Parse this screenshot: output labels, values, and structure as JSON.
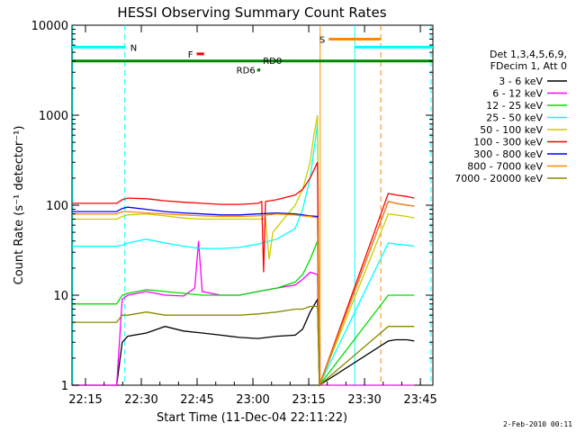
{
  "chart_data": {
    "type": "line",
    "title": "HESSI Observing Summary Count Rates",
    "xlabel": "Start Time (11-Dec-04 22:11:22)",
    "ylabel": "Count Rate (s⁻¹ detector⁻¹)",
    "y_scale": "log",
    "ylim": [
      1,
      10000
    ],
    "xlim_minutes": [
      0,
      97
    ],
    "x_ticks": [
      "22:15",
      "22:30",
      "22:45",
      "23:00",
      "23:15",
      "23:30",
      "23:45"
    ],
    "y_ticks": [
      "1",
      "10",
      "100",
      "1000",
      "10000"
    ],
    "grid": false,
    "legend_position": "right",
    "legend_header": [
      "Det 1,3,4,5,6,9,",
      "FDecim 1, Att 0"
    ],
    "timestamp": "2-Feb-2010 00:11",
    "series": [
      {
        "name": "3 - 6 keV",
        "color": "#000000",
        "x": [
          0,
          12,
          13.5,
          15,
          20,
          25,
          30,
          35,
          40,
          45,
          50,
          55,
          60,
          62,
          64,
          66,
          66.5,
          85,
          87,
          90,
          92
        ],
        "y": [
          1,
          1,
          3,
          3.5,
          3.8,
          4.5,
          4.0,
          3.8,
          3.6,
          3.4,
          3.3,
          3.5,
          3.6,
          4.2,
          6.5,
          9,
          1,
          3.1,
          3.2,
          3.2,
          3.1
        ]
      },
      {
        "name": "6 - 12 keV",
        "color": "#ff00ff",
        "x": [
          0,
          12,
          13.5,
          15,
          20,
          25,
          30,
          33,
          34,
          35,
          40,
          45,
          50,
          55,
          60,
          62,
          64,
          66,
          66.5,
          85,
          87,
          90,
          92
        ],
        "y": [
          1,
          1,
          9,
          10,
          11,
          10,
          9.8,
          12,
          40,
          11,
          10,
          10,
          11,
          12,
          13,
          15,
          18,
          17,
          1,
          1,
          1,
          1,
          1
        ]
      },
      {
        "name": "12 - 25 keV",
        "color": "#00dd00",
        "x": [
          0,
          12,
          13.5,
          15,
          20,
          25,
          30,
          35,
          40,
          45,
          50,
          55,
          60,
          62,
          64,
          66,
          66.5,
          85,
          87,
          90,
          92
        ],
        "y": [
          8,
          8,
          10,
          10.5,
          11.5,
          11,
          10.5,
          10,
          10,
          10,
          11,
          12,
          14,
          17,
          25,
          40,
          1,
          10,
          10,
          10,
          10
        ]
      },
      {
        "name": "25 - 50 keV",
        "color": "#00ffff",
        "x": [
          0,
          12,
          13.5,
          15,
          20,
          25,
          30,
          35,
          40,
          45,
          50,
          55,
          60,
          62,
          64,
          65,
          66,
          66.5,
          85,
          87,
          90,
          92
        ],
        "y": [
          35,
          35,
          36,
          38,
          42,
          38,
          35,
          33,
          33,
          34,
          37,
          42,
          55,
          90,
          200,
          400,
          800,
          1,
          38,
          37,
          36,
          35
        ]
      },
      {
        "name": "50 - 100 keV",
        "color": "#cccc00",
        "x": [
          0,
          12,
          13.5,
          15,
          20,
          25,
          30,
          35,
          40,
          45,
          50,
          52,
          53,
          54,
          58,
          60,
          62,
          64,
          65,
          66,
          66.5,
          85,
          87,
          90,
          92
        ],
        "y": [
          70,
          70,
          75,
          78,
          80,
          76,
          72,
          70,
          70,
          70,
          70,
          70,
          25,
          50,
          80,
          100,
          150,
          300,
          600,
          1000,
          1,
          80,
          78,
          75,
          72
        ]
      },
      {
        "name": "100 - 300 keV",
        "color": "#ff0000",
        "x": [
          0,
          12,
          13.5,
          15,
          20,
          25,
          30,
          35,
          40,
          45,
          50,
          51,
          51.5,
          52,
          55,
          60,
          62,
          64,
          66,
          66.5,
          85,
          87,
          90,
          92
        ],
        "y": [
          105,
          105,
          115,
          120,
          118,
          112,
          108,
          105,
          102,
          102,
          105,
          110,
          18,
          110,
          115,
          130,
          150,
          200,
          300,
          1,
          135,
          130,
          125,
          120
        ]
      },
      {
        "name": "300 - 800 keV",
        "color": "#0000ff",
        "x": [
          0,
          12,
          13.5,
          15,
          20,
          25,
          30,
          35,
          40,
          45,
          50,
          55,
          60,
          62,
          64,
          66,
          66.5,
          85,
          87,
          90,
          92
        ],
        "y": [
          85,
          85,
          92,
          95,
          90,
          85,
          82,
          80,
          78,
          78,
          80,
          82,
          80,
          78,
          76,
          75,
          1,
          110,
          105,
          100,
          98
        ]
      },
      {
        "name": "800 - 7000 keV",
        "color": "#ff8800",
        "x": [
          0,
          12,
          13.5,
          15,
          20,
          25,
          30,
          35,
          40,
          45,
          50,
          55,
          60,
          62,
          64,
          66,
          66.5,
          85,
          87,
          90,
          92
        ],
        "y": [
          80,
          80,
          85,
          85,
          82,
          80,
          78,
          76,
          75,
          75,
          76,
          80,
          78,
          76,
          75,
          72,
          1,
          110,
          105,
          100,
          98
        ]
      },
      {
        "name": "7000 - 20000 keV",
        "color": "#888800",
        "x": [
          0,
          12,
          13.5,
          15,
          20,
          25,
          30,
          35,
          40,
          45,
          50,
          55,
          60,
          62,
          64,
          66,
          66.5,
          85,
          87,
          90,
          92
        ],
        "y": [
          5,
          5,
          6,
          6,
          6.5,
          6,
          6,
          6,
          6,
          6,
          6.2,
          6.5,
          7,
          7,
          7.5,
          7.5,
          1,
          4.5,
          4.5,
          4.5,
          4.5
        ]
      }
    ],
    "flag_bars": [
      {
        "label": "N",
        "color": "#00ffff",
        "y": 5700,
        "segments": [
          [
            0,
            14.2
          ],
          [
            76,
            97
          ]
        ]
      },
      {
        "label": "S",
        "color": "#ff8800",
        "y": 7000,
        "segments": [
          [
            69,
            83
          ]
        ]
      },
      {
        "label": "F",
        "color": "#ff0000",
        "y": 4800,
        "segments": [
          [
            33.5,
            35.5
          ]
        ]
      },
      {
        "label": "RD0",
        "color": "#008800",
        "y": 4000,
        "segments": [
          [
            0,
            97
          ]
        ]
      },
      {
        "label": "RD6",
        "color": "#008800",
        "y": 3200,
        "segments": [
          [
            50,
            50.6
          ]
        ]
      }
    ],
    "vertical_lines": [
      {
        "x": 0.2,
        "color": "#00ffff",
        "style": "solid"
      },
      {
        "x": 14.2,
        "color": "#00ffff",
        "style": "dashed"
      },
      {
        "x": 66.7,
        "color": "#ff8800",
        "style": "solid"
      },
      {
        "x": 76,
        "color": "#00ffff",
        "style": "solid"
      },
      {
        "x": 83,
        "color": "#ff8800",
        "style": "dashed"
      },
      {
        "x": 96.5,
        "color": "#00ffff",
        "style": "dashed"
      }
    ]
  }
}
